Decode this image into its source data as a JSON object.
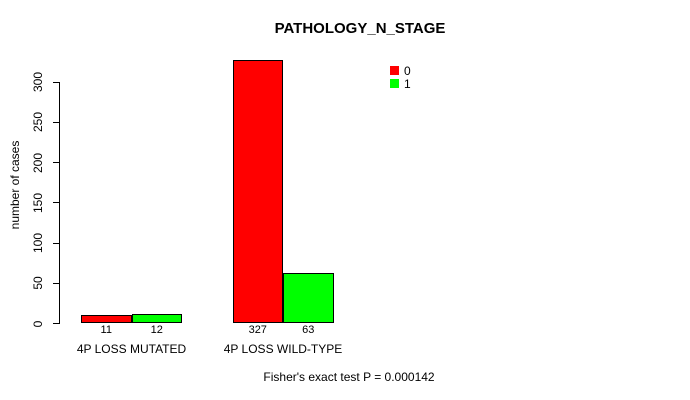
{
  "chart_data": {
    "type": "bar",
    "title": "PATHOLOGY_N_STAGE",
    "ylabel": "number of cases",
    "xlabel": "",
    "categories": [
      "4P LOSS MUTATED",
      "4P LOSS WILD-TYPE"
    ],
    "series": [
      {
        "name": "0",
        "color": "#ff0000",
        "values": [
          11,
          327
        ]
      },
      {
        "name": "1",
        "color": "#00ff00",
        "values": [
          12,
          63
        ]
      }
    ],
    "value_labels_shown": true,
    "yticks": [
      0,
      50,
      100,
      150,
      200,
      250,
      300
    ],
    "ylim": [
      0,
      327
    ],
    "grid": false,
    "bar_border_color": "#000000",
    "legend": {
      "position": "top-right-inner",
      "entries": [
        {
          "label": "0",
          "color": "#ff0000"
        },
        {
          "label": "1",
          "color": "#00ff00"
        }
      ]
    },
    "annotation": "Fisher's exact test P = 0.000142"
  }
}
